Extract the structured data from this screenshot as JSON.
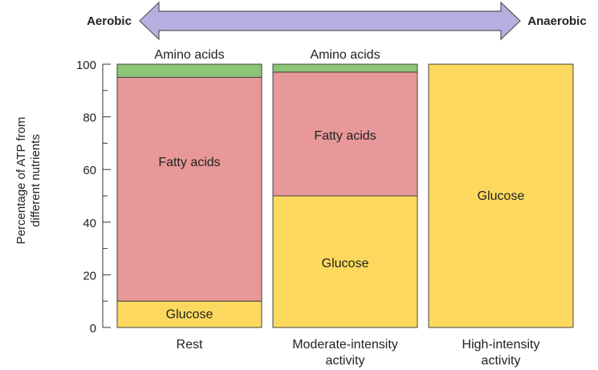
{
  "chart_data": {
    "type": "bar",
    "stacked": true,
    "categories": [
      [
        "Rest"
      ],
      [
        "Moderate-intensity",
        "activity"
      ],
      [
        "High-intensity",
        "activity"
      ]
    ],
    "series": [
      {
        "name": "Glucose",
        "color": "#fcd95e",
        "values": [
          10,
          50,
          100
        ]
      },
      {
        "name": "Fatty acids",
        "color": "#e89898",
        "values": [
          85,
          47,
          0
        ]
      },
      {
        "name": "Amino acids",
        "color": "#8cc576",
        "values": [
          5,
          3,
          0
        ]
      }
    ],
    "ylabel": [
      "Percentage of ATP from",
      "different nutrients"
    ],
    "ylim": [
      0,
      100
    ],
    "yticks": [
      0,
      20,
      40,
      60,
      80,
      100
    ],
    "arrow": {
      "left_label": "Aerobic",
      "right_label": "Anaerobic",
      "color": "#b9aee0"
    },
    "segment_labels": [
      {
        "bar": 0,
        "series": 0,
        "text": "Glucose"
      },
      {
        "bar": 0,
        "series": 1,
        "text": "Fatty acids"
      },
      {
        "bar": 0,
        "series": 2,
        "text": "Amino acids",
        "above": true
      },
      {
        "bar": 1,
        "series": 0,
        "text": "Glucose"
      },
      {
        "bar": 1,
        "series": 1,
        "text": "Fatty acids"
      },
      {
        "bar": 1,
        "series": 2,
        "text": "Amino acids",
        "above": true
      },
      {
        "bar": 2,
        "series": 0,
        "text": "Glucose"
      }
    ]
  }
}
